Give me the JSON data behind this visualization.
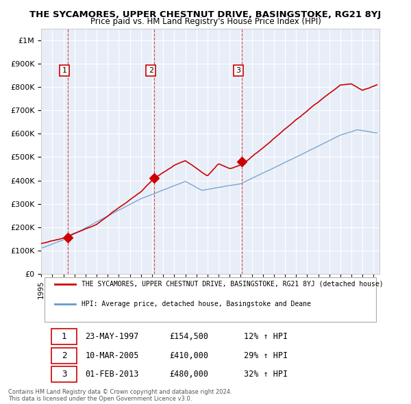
{
  "title": "THE SYCAMORES, UPPER CHESTNUT DRIVE, BASINGSTOKE, RG21 8YJ",
  "subtitle": "Price paid vs. HM Land Registry's House Price Index (HPI)",
  "red_label": "THE SYCAMORES, UPPER CHESTNUT DRIVE, BASINGSTOKE, RG21 8YJ (detached house)",
  "blue_label": "HPI: Average price, detached house, Basingstoke and Deane",
  "transactions": [
    {
      "num": 1,
      "date": "23-MAY-1997",
      "price": 154500,
      "year": 1997.39,
      "pct": "12%",
      "dir": "↑"
    },
    {
      "num": 2,
      "date": "10-MAR-2005",
      "price": 410000,
      "year": 2005.19,
      "pct": "29%",
      "dir": "↑"
    },
    {
      "num": 3,
      "date": "01-FEB-2013",
      "price": 480000,
      "year": 2013.08,
      "pct": "32%",
      "dir": "↑"
    }
  ],
  "copyright": "Contains HM Land Registry data © Crown copyright and database right 2024.\nThis data is licensed under the Open Government Licence v3.0.",
  "plot_bg": "#e8eef8",
  "grid_color": "#ffffff",
  "red_color": "#cc0000",
  "blue_color": "#6699cc",
  "xmin": 1995.0,
  "xmax": 2025.5
}
